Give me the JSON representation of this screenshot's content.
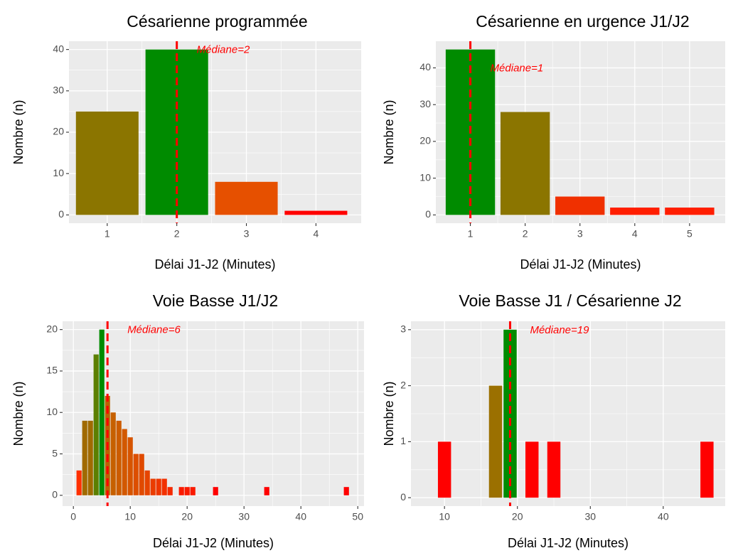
{
  "chart_data": [
    {
      "type": "bar",
      "title": "Césarienne programmée",
      "x_label": "Délai J1-J2 (Minutes)",
      "y_label": "Nombre (n)",
      "x": [
        1,
        2,
        3,
        4
      ],
      "values": [
        25,
        40,
        8,
        1
      ],
      "colors": [
        "#8B7500",
        "#008B00",
        "#E65000",
        "#FF0000"
      ],
      "xlim": [
        0.45,
        4.65
      ],
      "xticks": [
        1,
        2,
        3,
        4
      ],
      "ylim": [
        -2,
        42
      ],
      "yticks": [
        0,
        10,
        20,
        30,
        40
      ],
      "grid": true,
      "median": 2,
      "annotation": "Médiane=2",
      "median_color": "#FF0000"
    },
    {
      "type": "bar",
      "title": "Césarienne en urgence J1/J2",
      "x_label": "Délai J1-J2 (Minutes)",
      "y_label": "Nombre (n)",
      "x": [
        1,
        2,
        3,
        4,
        5
      ],
      "values": [
        45,
        28,
        5,
        2,
        2
      ],
      "colors": [
        "#008B00",
        "#8B7500",
        "#F03000",
        "#FF1E00",
        "#FF1E00"
      ],
      "xlim": [
        0.37,
        5.65
      ],
      "xticks": [
        1,
        2,
        3,
        4,
        5
      ],
      "ylim": [
        -2.25,
        47.25
      ],
      "yticks": [
        0,
        10,
        20,
        30,
        40
      ],
      "grid": true,
      "median": 1,
      "annotation": "Médiane=1",
      "median_color": "#FF0000"
    },
    {
      "type": "bar",
      "title": "Voie Basse J1/J2",
      "x_label": "Délai J1-J2 (Minutes)",
      "y_label": "Nombre (n)",
      "x": [
        1,
        2,
        3,
        4,
        5,
        6,
        7,
        8,
        9,
        10,
        11,
        12,
        13,
        14,
        15,
        16,
        17,
        19,
        20,
        21,
        25,
        34,
        48
      ],
      "values": [
        3,
        9,
        9,
        17,
        20,
        12,
        10,
        9,
        8,
        7,
        5,
        5,
        3,
        2,
        2,
        2,
        1,
        1,
        1,
        1,
        1,
        1,
        1
      ],
      "colors": [
        "#FF3000",
        "#A06A00",
        "#A06A00",
        "#5C7F00",
        "#008B00",
        "#BB6300",
        "#C66000",
        "#CC5C00",
        "#D25800",
        "#D65400",
        "#DC4E00",
        "#E04A00",
        "#E64400",
        "#EA3C00",
        "#EE3600",
        "#F23000",
        "#F42A00",
        "#FA1A00",
        "#FA1A00",
        "#FA1A00",
        "#FF0000",
        "#FF0000",
        "#FF0000"
      ],
      "xlim": [
        -1.9,
        51.1
      ],
      "xticks": [
        0,
        10,
        20,
        30,
        40,
        50
      ],
      "ylim": [
        -1.3,
        21
      ],
      "yticks": [
        0,
        5,
        10,
        15,
        20
      ],
      "grid": true,
      "median": 6,
      "annotation": "Médiane=6",
      "median_color": "#FF0000"
    },
    {
      "type": "bar",
      "title": "Voie Basse J1 / Césarienne J2",
      "x_label": "Délai J1-J2 (Minutes)",
      "y_label": "Nombre (n)",
      "x": [
        10,
        17,
        19,
        22,
        25,
        46
      ],
      "values": [
        1,
        2,
        3,
        1,
        1,
        1
      ],
      "colors": [
        "#FF0000",
        "#9B7000",
        "#008B00",
        "#FF0000",
        "#FF0000",
        "#FF0000"
      ],
      "xlim": [
        5.4,
        48.5
      ],
      "xticks": [
        10,
        20,
        30,
        40
      ],
      "ylim": [
        -0.15,
        3.15
      ],
      "yticks": [
        0,
        1,
        2,
        3
      ],
      "grid": true,
      "median": 19,
      "annotation": "Médiane=19",
      "median_color": "#FF0000"
    }
  ]
}
